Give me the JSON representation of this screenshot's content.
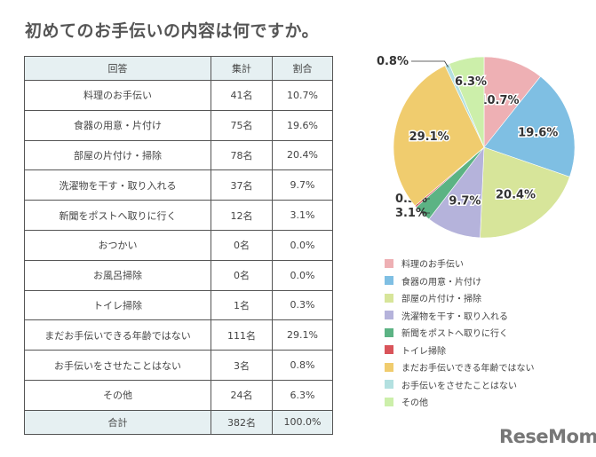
{
  "title": "初めてのお手伝いの内容は何ですか。",
  "table": {
    "headers": [
      "回答",
      "集計",
      "割合"
    ],
    "rows": [
      [
        "料理のお手伝い",
        "41名",
        "10.7%"
      ],
      [
        "食器の用意・片付け",
        "75名",
        "19.6%"
      ],
      [
        "部屋の片付け・掃除",
        "78名",
        "20.4%"
      ],
      [
        "洗濯物を干す・取り入れる",
        "37名",
        "9.7%"
      ],
      [
        "新聞をポストへ取りに行く",
        "12名",
        "3.1%"
      ],
      [
        "おつかい",
        "0名",
        "0.0%"
      ],
      [
        "お風呂掃除",
        "0名",
        "0.0%"
      ],
      [
        "トイレ掃除",
        "1名",
        "0.3%"
      ],
      [
        "まだお手伝いできる年齢ではない",
        "111名",
        "29.1%"
      ],
      [
        "お手伝いをさせたことはない",
        "3名",
        "0.8%"
      ],
      [
        "その他",
        "24名",
        "6.3%"
      ]
    ],
    "total": [
      "合計",
      "382名",
      "100.0%"
    ]
  },
  "chart_data": {
    "type": "pie",
    "title": "初めてのお手伝いの内容は何ですか。",
    "categories": [
      "料理のお手伝い",
      "食器の用意・片付け",
      "部屋の片付け・掃除",
      "洗濯物を干す・取り入れる",
      "新聞をポストへ取りに行く",
      "トイレ掃除",
      "まだお手伝いできる年齢ではない",
      "お手伝いをさせたことはない",
      "その他"
    ],
    "values": [
      10.7,
      19.6,
      20.4,
      9.7,
      3.1,
      0.3,
      29.1,
      0.8,
      6.3
    ],
    "labels": [
      "10.7%",
      "19.6%",
      "20.4%",
      "9.7%",
      "3.1%",
      "0.3%",
      "29.1%",
      "0.8%",
      "6.3%"
    ],
    "colors": [
      "#eeb0b4",
      "#7fbfe3",
      "#d7e59a",
      "#b5b3db",
      "#5cb384",
      "#d9545a",
      "#f0cc6e",
      "#b3e0e0",
      "#ccefaa"
    ],
    "legend_position": "bottom-right"
  },
  "logo": "ReseMom"
}
